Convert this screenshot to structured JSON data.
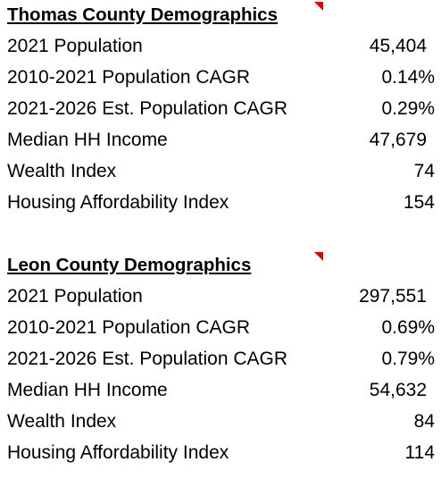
{
  "sections": [
    {
      "title": "Thomas County Demographics",
      "rows": [
        [
          "2021 Population",
          "45,404"
        ],
        [
          "2010-2021 Population CAGR",
          "0.14%"
        ],
        [
          "2021-2026 Est. Population CAGR",
          "0.29%"
        ],
        [
          "Median HH Income",
          "47,679"
        ],
        [
          "Wealth Index",
          "74"
        ],
        [
          "Housing Affordability Index",
          "154"
        ]
      ]
    },
    {
      "title": "Leon County Demographics",
      "rows": [
        [
          "2021 Population",
          "297,551"
        ],
        [
          "2010-2021 Population CAGR",
          "0.69%"
        ],
        [
          "2021-2026 Est. Population CAGR",
          "0.79%"
        ],
        [
          "Median HH Income",
          "54,632"
        ],
        [
          "Wealth Index",
          "84"
        ],
        [
          "Housing Affordability Index",
          "114"
        ]
      ]
    }
  ]
}
